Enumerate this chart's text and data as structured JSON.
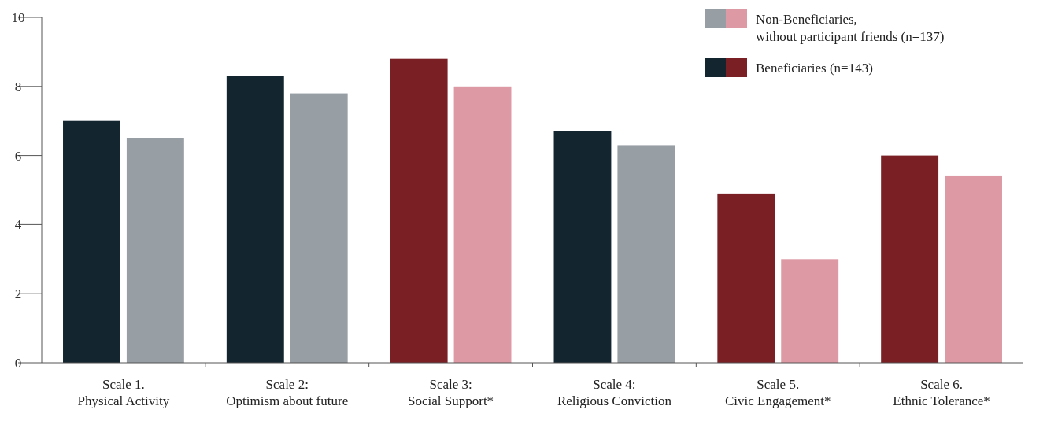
{
  "chart_data": {
    "type": "bar",
    "categories": [
      "Scale 1.\nPhysical Activity",
      "Scale 2:\nOptimism about future",
      "Scale 3:\nSocial Support*",
      "Scale 4:\nReligious Conviction",
      "Scale 5.\nCivic Engagement*",
      "Scale 6.\nEthnic Tolerance*"
    ],
    "series": [
      {
        "name": "Beneficiaries (n=143)",
        "colors": [
          "#13262f",
          "#13262f",
          "#7a1f24",
          "#13262f",
          "#7a1f24",
          "#7a1f24"
        ],
        "values": [
          7.0,
          8.3,
          8.8,
          6.7,
          4.9,
          6.0
        ]
      },
      {
        "name": "Non-Beneficiaries,\nwithout participant friends (n=137)",
        "colors": [
          "#979ea4",
          "#979ea4",
          "#dd9aa4",
          "#979ea4",
          "#dd9aa4",
          "#dd9aa4"
        ],
        "values": [
          6.5,
          7.8,
          8.0,
          6.3,
          3.0,
          5.4
        ]
      }
    ],
    "ylim": [
      0,
      10
    ],
    "yticks": [
      0,
      2,
      4,
      6,
      8,
      10
    ],
    "grid": false,
    "legend": "top right"
  }
}
